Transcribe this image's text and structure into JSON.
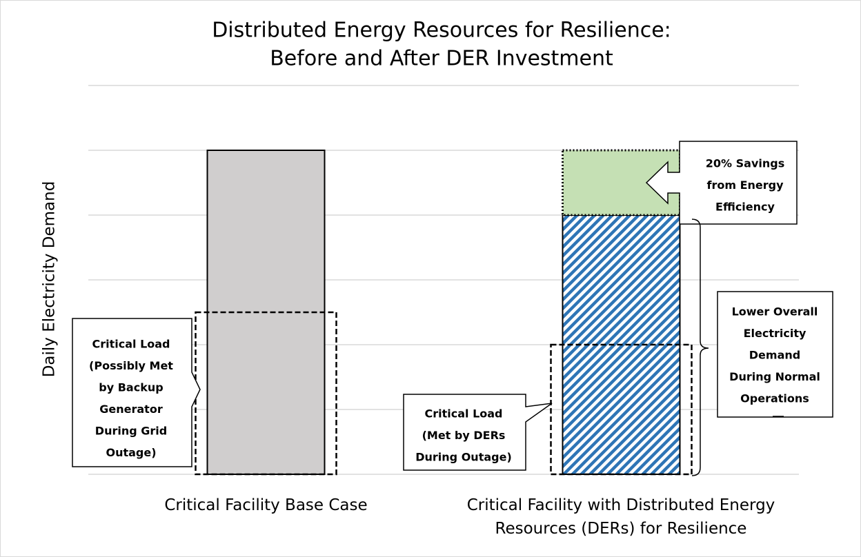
{
  "chart_data": {
    "type": "bar",
    "title": [
      "Distributed Energy Resources for Resilience:",
      "Before and After DER Investment"
    ],
    "y_label": "Daily Electricity Demand",
    "categories": [
      "Critical Facility Base Case",
      "Critical Facility with Distributed Energy Resources (DERs) for Resilience"
    ],
    "series": [
      {
        "colors": [
          "#d0cece",
          "#2e75b6"
        ],
        "patterns": [
          "solid",
          "hatch"
        ],
        "values": [
          5,
          4
        ]
      },
      {
        "color": "#c5e0b4",
        "values": [
          null,
          1
        ]
      }
    ],
    "critical_load": {
      "values": [
        2.5,
        2
      ]
    },
    "ylim": [
      0,
      6
    ],
    "yticks": [
      0,
      1,
      2,
      3,
      4,
      5,
      6
    ],
    "grid": true,
    "annotations": [
      {
        "lines": [
          "Critical Load",
          "(Possibly Met",
          "by Backup",
          "Generator",
          "During Grid",
          "Outage)"
        ]
      },
      {
        "lines": [
          "Critical Load",
          "(Met by DERs",
          "During Outage)"
        ]
      },
      {
        "lines": [
          "20% Savings",
          "from Energy",
          "Efficiency"
        ]
      },
      {
        "lines": [
          "Lower Overall",
          "Electricity",
          "Demand",
          "During Normal",
          "Operations"
        ]
      }
    ]
  }
}
